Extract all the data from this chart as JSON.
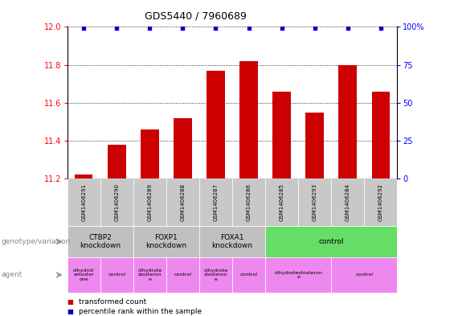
{
  "title": "GDS5440 / 7960689",
  "samples": [
    "GSM1406291",
    "GSM1406290",
    "GSM1406289",
    "GSM1406288",
    "GSM1406287",
    "GSM1406286",
    "GSM1406285",
    "GSM1406293",
    "GSM1406284",
    "GSM1406292"
  ],
  "bar_values": [
    11.22,
    11.38,
    11.46,
    11.52,
    11.77,
    11.82,
    11.66,
    11.55,
    11.8,
    11.66
  ],
  "percentile_values": [
    99,
    99,
    99,
    99,
    99,
    99,
    99,
    99,
    99,
    99
  ],
  "ylim_left": [
    11.2,
    12.0
  ],
  "ylim_right": [
    0,
    100
  ],
  "bar_color": "#cc0000",
  "dot_color": "#0000cc",
  "yticks_left": [
    11.2,
    11.4,
    11.6,
    11.8,
    12.0
  ],
  "yticks_right": [
    0,
    25,
    50,
    75,
    100
  ],
  "ytick_right_labels": [
    "0",
    "25",
    "50",
    "75",
    "100%"
  ],
  "genotype_groups": [
    {
      "label": "CTBP2\nknockdown",
      "start": 0,
      "end": 2,
      "color": "#c0c0c0"
    },
    {
      "label": "FOXP1\nknockdown",
      "start": 2,
      "end": 4,
      "color": "#c0c0c0"
    },
    {
      "label": "FOXA1\nknockdown",
      "start": 4,
      "end": 6,
      "color": "#c0c0c0"
    },
    {
      "label": "control",
      "start": 6,
      "end": 10,
      "color": "#66dd66"
    }
  ],
  "agent_groups": [
    {
      "label": "dihydrot\nestoster\none",
      "start": 0,
      "end": 1,
      "color": "#ee88ee"
    },
    {
      "label": "control",
      "start": 1,
      "end": 2,
      "color": "#ee88ee"
    },
    {
      "label": "dihydrote\nstosteron\ne",
      "start": 2,
      "end": 3,
      "color": "#ee88ee"
    },
    {
      "label": "control",
      "start": 3,
      "end": 4,
      "color": "#ee88ee"
    },
    {
      "label": "dihydrote\nstosteron\ne",
      "start": 4,
      "end": 5,
      "color": "#ee88ee"
    },
    {
      "label": "control",
      "start": 5,
      "end": 6,
      "color": "#ee88ee"
    },
    {
      "label": "dihydrotestosteron\ne",
      "start": 6,
      "end": 8,
      "color": "#ee88ee"
    },
    {
      "label": "control",
      "start": 8,
      "end": 10,
      "color": "#ee88ee"
    }
  ],
  "legend_items": [
    {
      "label": "  transformed count",
      "color": "#cc0000"
    },
    {
      "label": "  percentile rank within the sample",
      "color": "#0000cc"
    }
  ],
  "left_labels": [
    "genotype/variation",
    "agent"
  ],
  "sample_bg": "#c8c8c8",
  "fig_width": 5.65,
  "fig_height": 3.93,
  "dpi": 100
}
